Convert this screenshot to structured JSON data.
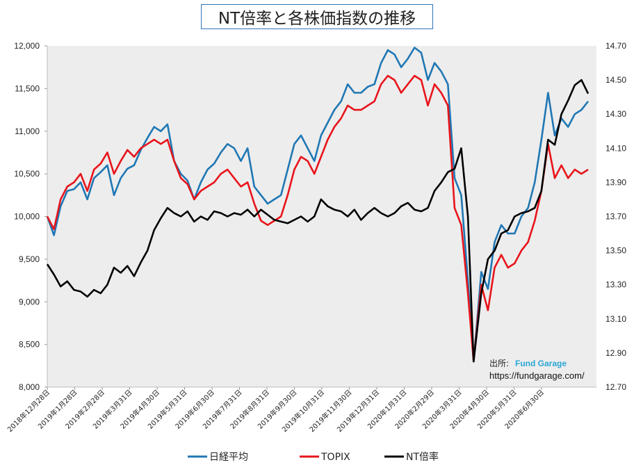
{
  "chart_data": {
    "type": "line",
    "title": "NT倍率と各株価指数の推移",
    "background_color": "#ededed",
    "grid": "none",
    "legend_position": "bottom",
    "y_left": {
      "min": 8000,
      "max": 12000,
      "ticks": [
        "8,000",
        "8,500",
        "9,000",
        "9,500",
        "10,000",
        "10,500",
        "11,000",
        "11,500",
        "12,000"
      ]
    },
    "y_right": {
      "min": 12.7,
      "max": 14.7,
      "ticks": [
        "12.70",
        "12.90",
        "13.10",
        "13.30",
        "13.50",
        "13.70",
        "13.90",
        "14.10",
        "14.30",
        "14.50",
        "14.70"
      ]
    },
    "x_ticks": [
      "2018年12月28日",
      "2019年1月28日",
      "2019年2月28日",
      "2019年3月31日",
      "2019年4月30日",
      "2019年5月31日",
      "2019年6月30日",
      "2019年7月31日",
      "2019年8月31日",
      "2019年9月30日",
      "2019年10月31日",
      "2019年11月30日",
      "2019年12月31日",
      "2020年1月31日",
      "2020年2月29日",
      "2020年3月31日",
      "2020年4月30日",
      "2020年5月31日",
      "2020年6月30日"
    ],
    "x_start": "2018-12-28",
    "x_end": "2020-07-17",
    "series": [
      {
        "name": "日経平均",
        "axis": "left",
        "color": "#1f77b4",
        "points": [
          [
            "2018-12-28",
            10000
          ],
          [
            "2019-01-04",
            9780
          ],
          [
            "2019-01-11",
            10120
          ],
          [
            "2019-01-18",
            10300
          ],
          [
            "2019-01-25",
            10320
          ],
          [
            "2019-02-01",
            10400
          ],
          [
            "2019-02-08",
            10200
          ],
          [
            "2019-02-15",
            10450
          ],
          [
            "2019-02-22",
            10520
          ],
          [
            "2019-03-01",
            10600
          ],
          [
            "2019-03-08",
            10250
          ],
          [
            "2019-03-15",
            10450
          ],
          [
            "2019-03-22",
            10560
          ],
          [
            "2019-03-29",
            10600
          ],
          [
            "2019-04-05",
            10780
          ],
          [
            "2019-04-12",
            10920
          ],
          [
            "2019-04-19",
            11050
          ],
          [
            "2019-04-26",
            11000
          ],
          [
            "2019-05-03",
            11080
          ],
          [
            "2019-05-10",
            10650
          ],
          [
            "2019-05-17",
            10500
          ],
          [
            "2019-05-24",
            10420
          ],
          [
            "2019-05-31",
            10200
          ],
          [
            "2019-06-07",
            10400
          ],
          [
            "2019-06-14",
            10550
          ],
          [
            "2019-06-21",
            10620
          ],
          [
            "2019-06-28",
            10750
          ],
          [
            "2019-07-05",
            10850
          ],
          [
            "2019-07-12",
            10800
          ],
          [
            "2019-07-19",
            10650
          ],
          [
            "2019-07-26",
            10800
          ],
          [
            "2019-08-02",
            10350
          ],
          [
            "2019-08-09",
            10250
          ],
          [
            "2019-08-16",
            10150
          ],
          [
            "2019-08-23",
            10200
          ],
          [
            "2019-08-30",
            10250
          ],
          [
            "2019-09-06",
            10550
          ],
          [
            "2019-09-13",
            10850
          ],
          [
            "2019-09-20",
            10950
          ],
          [
            "2019-09-27",
            10800
          ],
          [
            "2019-10-04",
            10650
          ],
          [
            "2019-10-11",
            10950
          ],
          [
            "2019-10-18",
            11100
          ],
          [
            "2019-10-25",
            11250
          ],
          [
            "2019-11-01",
            11350
          ],
          [
            "2019-11-08",
            11550
          ],
          [
            "2019-11-15",
            11450
          ],
          [
            "2019-11-22",
            11450
          ],
          [
            "2019-11-29",
            11520
          ],
          [
            "2019-12-06",
            11550
          ],
          [
            "2019-12-13",
            11800
          ],
          [
            "2019-12-20",
            11950
          ],
          [
            "2019-12-27",
            11900
          ],
          [
            "2020-01-03",
            11750
          ],
          [
            "2020-01-10",
            11850
          ],
          [
            "2020-01-17",
            11980
          ],
          [
            "2020-01-24",
            11920
          ],
          [
            "2020-01-31",
            11600
          ],
          [
            "2020-02-07",
            11800
          ],
          [
            "2020-02-14",
            11700
          ],
          [
            "2020-02-21",
            11550
          ],
          [
            "2020-02-28",
            10450
          ],
          [
            "2020-03-06",
            10250
          ],
          [
            "2020-03-13",
            9250
          ],
          [
            "2020-03-19",
            8300
          ],
          [
            "2020-03-27",
            9350
          ],
          [
            "2020-04-03",
            9150
          ],
          [
            "2020-04-10",
            9700
          ],
          [
            "2020-04-17",
            9900
          ],
          [
            "2020-04-24",
            9800
          ],
          [
            "2020-05-01",
            9800
          ],
          [
            "2020-05-08",
            10000
          ],
          [
            "2020-05-15",
            10100
          ],
          [
            "2020-05-22",
            10400
          ],
          [
            "2020-05-29",
            10900
          ],
          [
            "2020-06-05",
            11450
          ],
          [
            "2020-06-12",
            10950
          ],
          [
            "2020-06-19",
            11150
          ],
          [
            "2020-06-26",
            11050
          ],
          [
            "2020-07-03",
            11200
          ],
          [
            "2020-07-10",
            11250
          ],
          [
            "2020-07-17",
            11350
          ]
        ]
      },
      {
        "name": "TOPIX",
        "axis": "left",
        "color": "#e8141b",
        "points": [
          [
            "2018-12-28",
            10000
          ],
          [
            "2019-01-04",
            9850
          ],
          [
            "2019-01-11",
            10200
          ],
          [
            "2019-01-18",
            10350
          ],
          [
            "2019-01-25",
            10400
          ],
          [
            "2019-02-01",
            10500
          ],
          [
            "2019-02-08",
            10300
          ],
          [
            "2019-02-15",
            10550
          ],
          [
            "2019-02-22",
            10620
          ],
          [
            "2019-03-01",
            10750
          ],
          [
            "2019-03-08",
            10500
          ],
          [
            "2019-03-15",
            10650
          ],
          [
            "2019-03-22",
            10780
          ],
          [
            "2019-03-29",
            10700
          ],
          [
            "2019-04-05",
            10800
          ],
          [
            "2019-04-12",
            10850
          ],
          [
            "2019-04-19",
            10900
          ],
          [
            "2019-04-26",
            10850
          ],
          [
            "2019-05-03",
            10900
          ],
          [
            "2019-05-10",
            10650
          ],
          [
            "2019-05-17",
            10450
          ],
          [
            "2019-05-24",
            10380
          ],
          [
            "2019-05-31",
            10200
          ],
          [
            "2019-06-07",
            10300
          ],
          [
            "2019-06-14",
            10350
          ],
          [
            "2019-06-21",
            10400
          ],
          [
            "2019-06-28",
            10500
          ],
          [
            "2019-07-05",
            10550
          ],
          [
            "2019-07-12",
            10450
          ],
          [
            "2019-07-19",
            10350
          ],
          [
            "2019-07-26",
            10400
          ],
          [
            "2019-08-02",
            10150
          ],
          [
            "2019-08-09",
            9950
          ],
          [
            "2019-08-16",
            9900
          ],
          [
            "2019-08-23",
            9950
          ],
          [
            "2019-08-30",
            10000
          ],
          [
            "2019-09-06",
            10250
          ],
          [
            "2019-09-13",
            10550
          ],
          [
            "2019-09-20",
            10700
          ],
          [
            "2019-09-27",
            10650
          ],
          [
            "2019-10-04",
            10500
          ],
          [
            "2019-10-11",
            10700
          ],
          [
            "2019-10-18",
            10900
          ],
          [
            "2019-10-25",
            11050
          ],
          [
            "2019-11-01",
            11150
          ],
          [
            "2019-11-08",
            11300
          ],
          [
            "2019-11-15",
            11250
          ],
          [
            "2019-11-22",
            11250
          ],
          [
            "2019-11-29",
            11300
          ],
          [
            "2019-12-06",
            11350
          ],
          [
            "2019-12-13",
            11550
          ],
          [
            "2019-12-20",
            11650
          ],
          [
            "2019-12-27",
            11600
          ],
          [
            "2020-01-03",
            11450
          ],
          [
            "2020-01-10",
            11550
          ],
          [
            "2020-01-17",
            11650
          ],
          [
            "2020-01-24",
            11600
          ],
          [
            "2020-01-31",
            11300
          ],
          [
            "2020-02-07",
            11550
          ],
          [
            "2020-02-14",
            11450
          ],
          [
            "2020-02-21",
            11300
          ],
          [
            "2020-02-28",
            10100
          ],
          [
            "2020-03-06",
            9900
          ],
          [
            "2020-03-13",
            9100
          ],
          [
            "2020-03-19",
            8300
          ],
          [
            "2020-03-27",
            9200
          ],
          [
            "2020-04-03",
            8900
          ],
          [
            "2020-04-10",
            9400
          ],
          [
            "2020-04-17",
            9550
          ],
          [
            "2020-04-24",
            9400
          ],
          [
            "2020-05-01",
            9450
          ],
          [
            "2020-05-08",
            9600
          ],
          [
            "2020-05-15",
            9700
          ],
          [
            "2020-05-22",
            9950
          ],
          [
            "2020-05-29",
            10300
          ],
          [
            "2020-06-05",
            10850
          ],
          [
            "2020-06-12",
            10450
          ],
          [
            "2020-06-19",
            10600
          ],
          [
            "2020-06-26",
            10450
          ],
          [
            "2020-07-03",
            10550
          ],
          [
            "2020-07-10",
            10500
          ],
          [
            "2020-07-17",
            10550
          ]
        ]
      },
      {
        "name": "NT倍率",
        "axis": "right",
        "color": "#000000",
        "points": [
          [
            "2018-12-28",
            13.42
          ],
          [
            "2019-01-04",
            13.36
          ],
          [
            "2019-01-11",
            13.29
          ],
          [
            "2019-01-18",
            13.32
          ],
          [
            "2019-01-25",
            13.27
          ],
          [
            "2019-02-01",
            13.26
          ],
          [
            "2019-02-08",
            13.23
          ],
          [
            "2019-02-15",
            13.27
          ],
          [
            "2019-02-22",
            13.25
          ],
          [
            "2019-03-01",
            13.3
          ],
          [
            "2019-03-08",
            13.4
          ],
          [
            "2019-03-15",
            13.37
          ],
          [
            "2019-03-22",
            13.41
          ],
          [
            "2019-03-29",
            13.35
          ],
          [
            "2019-04-05",
            13.43
          ],
          [
            "2019-04-12",
            13.5
          ],
          [
            "2019-04-19",
            13.62
          ],
          [
            "2019-04-26",
            13.69
          ],
          [
            "2019-05-03",
            13.75
          ],
          [
            "2019-05-10",
            13.72
          ],
          [
            "2019-05-17",
            13.7
          ],
          [
            "2019-05-24",
            13.73
          ],
          [
            "2019-05-31",
            13.67
          ],
          [
            "2019-06-07",
            13.7
          ],
          [
            "2019-06-14",
            13.68
          ],
          [
            "2019-06-21",
            13.73
          ],
          [
            "2019-06-28",
            13.72
          ],
          [
            "2019-07-05",
            13.7
          ],
          [
            "2019-07-12",
            13.72
          ],
          [
            "2019-07-19",
            13.71
          ],
          [
            "2019-07-26",
            13.74
          ],
          [
            "2019-08-02",
            13.7
          ],
          [
            "2019-08-09",
            13.74
          ],
          [
            "2019-08-16",
            13.71
          ],
          [
            "2019-08-23",
            13.68
          ],
          [
            "2019-08-30",
            13.67
          ],
          [
            "2019-09-06",
            13.66
          ],
          [
            "2019-09-13",
            13.68
          ],
          [
            "2019-09-20",
            13.7
          ],
          [
            "2019-09-27",
            13.67
          ],
          [
            "2019-10-04",
            13.7
          ],
          [
            "2019-10-11",
            13.8
          ],
          [
            "2019-10-18",
            13.76
          ],
          [
            "2019-10-25",
            13.74
          ],
          [
            "2019-11-01",
            13.73
          ],
          [
            "2019-11-08",
            13.7
          ],
          [
            "2019-11-15",
            13.74
          ],
          [
            "2019-11-22",
            13.68
          ],
          [
            "2019-11-29",
            13.72
          ],
          [
            "2019-12-06",
            13.75
          ],
          [
            "2019-12-13",
            13.72
          ],
          [
            "2019-12-20",
            13.7
          ],
          [
            "2019-12-27",
            13.72
          ],
          [
            "2020-01-03",
            13.76
          ],
          [
            "2020-01-10",
            13.78
          ],
          [
            "2020-01-17",
            13.74
          ],
          [
            "2020-01-24",
            13.73
          ],
          [
            "2020-01-31",
            13.75
          ],
          [
            "2020-02-07",
            13.85
          ],
          [
            "2020-02-14",
            13.9
          ],
          [
            "2020-02-21",
            13.96
          ],
          [
            "2020-02-28",
            13.98
          ],
          [
            "2020-03-06",
            14.1
          ],
          [
            "2020-03-13",
            13.7
          ],
          [
            "2020-03-19",
            12.85
          ],
          [
            "2020-03-27",
            13.25
          ],
          [
            "2020-04-03",
            13.45
          ],
          [
            "2020-04-10",
            13.5
          ],
          [
            "2020-04-17",
            13.6
          ],
          [
            "2020-04-24",
            13.62
          ],
          [
            "2020-05-01",
            13.7
          ],
          [
            "2020-05-08",
            13.72
          ],
          [
            "2020-05-15",
            13.73
          ],
          [
            "2020-05-22",
            13.75
          ],
          [
            "2020-05-29",
            13.85
          ],
          [
            "2020-06-05",
            14.15
          ],
          [
            "2020-06-12",
            14.12
          ],
          [
            "2020-06-19",
            14.3
          ],
          [
            "2020-06-26",
            14.38
          ],
          [
            "2020-07-03",
            14.47
          ],
          [
            "2020-07-10",
            14.5
          ],
          [
            "2020-07-17",
            14.42
          ]
        ]
      }
    ]
  },
  "source": {
    "label": "出所:",
    "brand": "Fund Garage",
    "url": "https://fundgarage.com/"
  }
}
